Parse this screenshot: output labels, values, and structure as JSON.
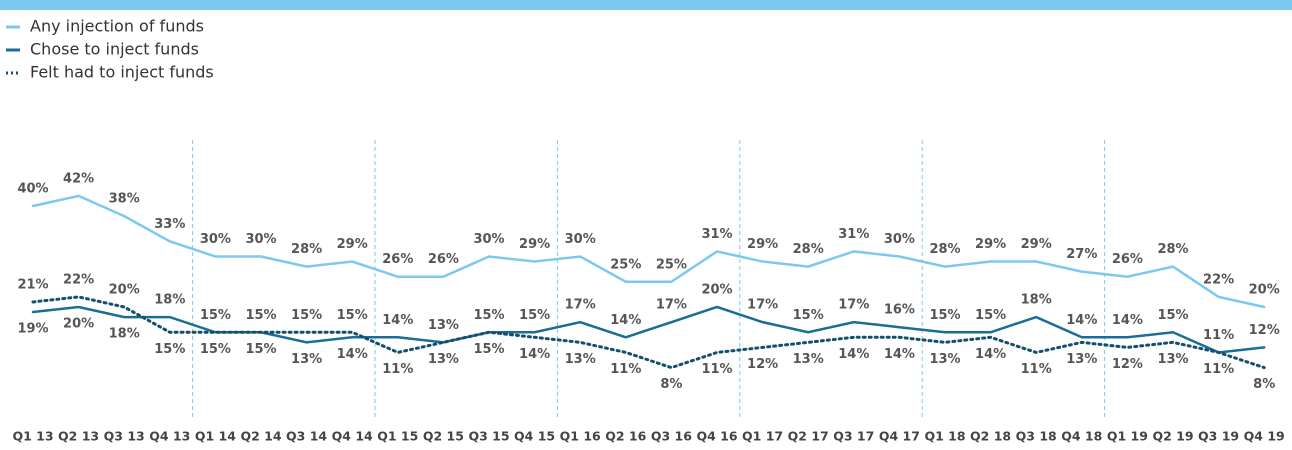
{
  "chart_data": {
    "type": "line",
    "categories": [
      "Q1 13",
      "Q2 13",
      "Q3 13",
      "Q4 13",
      "Q1 14",
      "Q2 14",
      "Q3 14",
      "Q4 14",
      "Q1 15",
      "Q2 15",
      "Q3 15",
      "Q4 15",
      "Q1 16",
      "Q2 16",
      "Q3 16",
      "Q4 16",
      "Q1 17",
      "Q2 17",
      "Q3 17",
      "Q4 17",
      "Q1 18",
      "Q2 18",
      "Q3 18",
      "Q4 18",
      "Q1 19",
      "Q2 19",
      "Q3 19",
      "Q4 19"
    ],
    "ylim": [
      0,
      40
    ],
    "series": [
      {
        "name": "Any injection of funds",
        "color": "#7dc8ee",
        "style": "solid",
        "values": [
          40,
          42,
          38,
          33,
          30,
          30,
          28,
          29,
          26,
          26,
          30,
          29,
          30,
          25,
          25,
          31,
          29,
          28,
          31,
          30,
          28,
          29,
          29,
          27,
          26,
          28,
          22,
          20
        ],
        "value_labels": [
          "40%",
          "42%",
          "38%",
          "33%",
          "30%",
          "30%",
          "28%",
          "29%",
          "26%",
          "26%",
          "30%",
          "29%",
          "30%",
          "25%",
          "25%",
          "31%",
          "29%",
          "28%",
          "31%",
          "30%",
          "28%",
          "29%",
          "29%",
          "27%",
          "26%",
          "28%",
          "22%",
          "20%"
        ]
      },
      {
        "name": "Chose to inject funds",
        "color": "#1a6d95",
        "style": "solid",
        "values": [
          19,
          20,
          18,
          18,
          15,
          15,
          13,
          14,
          14,
          13,
          15,
          15,
          17,
          14,
          17,
          20,
          17,
          15,
          17,
          16,
          15,
          15,
          18,
          14,
          14,
          15,
          11,
          12
        ],
        "value_labels": [
          "19%",
          "20%",
          "18%",
          "18%",
          "15%",
          "15%",
          "13%",
          "14%",
          "14%",
          "13%",
          "15%",
          "15%",
          "17%",
          "14%",
          "17%",
          "20%",
          "17%",
          "15%",
          "17%",
          "16%",
          "15%",
          "15%",
          "18%",
          "14%",
          "14%",
          "15%",
          "11%",
          "12%"
        ]
      },
      {
        "name": "Felt had to inject funds",
        "color": "#144f6e",
        "style": "dotted",
        "values": [
          21,
          22,
          20,
          15,
          15,
          15,
          15,
          15,
          11,
          13,
          15,
          14,
          13,
          11,
          8,
          11,
          12,
          13,
          14,
          14,
          13,
          14,
          11,
          13,
          12,
          13,
          11,
          8
        ],
        "value_labels": [
          "21%",
          "22%",
          "20%",
          "15%",
          "15%",
          "15%",
          "15%",
          "15%",
          "11%",
          "13%",
          "15%",
          "14%",
          "13%",
          "11%",
          "8%",
          "11%",
          "12%",
          "13%",
          "14%",
          "14%",
          "13%",
          "14%",
          "11%",
          "13%",
          "12%",
          "13%",
          "11%",
          "8%"
        ]
      }
    ]
  }
}
